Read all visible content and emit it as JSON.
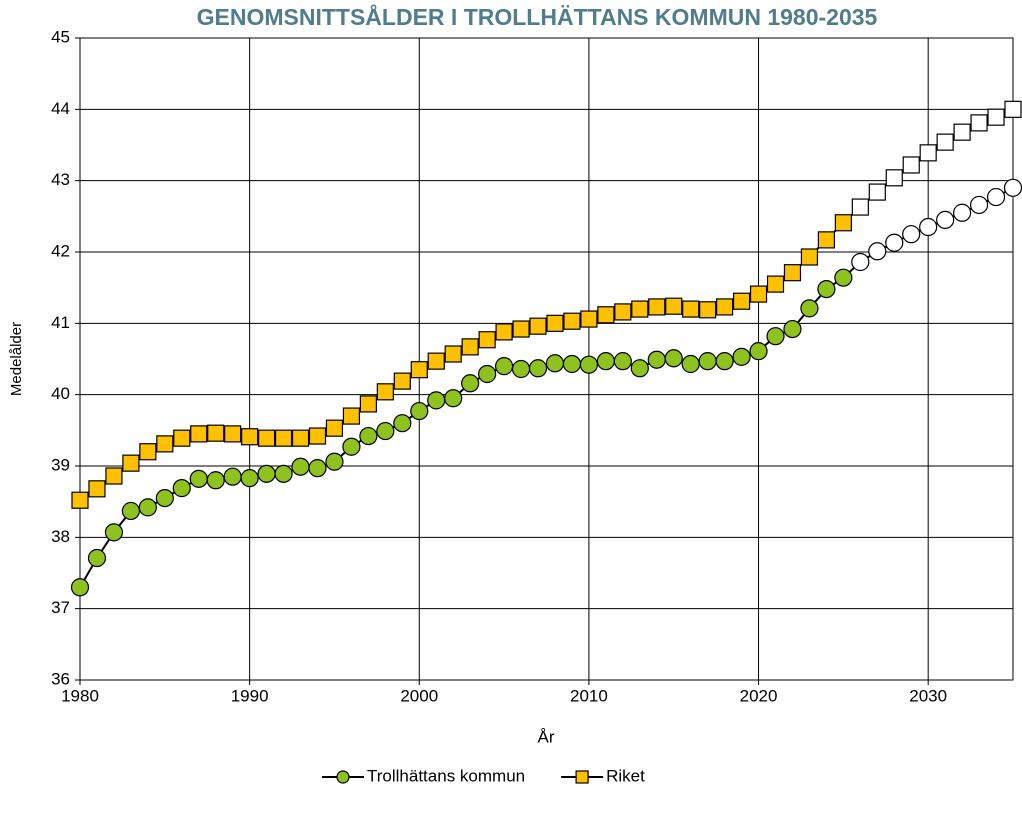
{
  "chart_data": {
    "type": "line",
    "title": "GENOMSNITTSÅLDER I TROLLHÄTTANS KOMMUN 1980-2035",
    "x_label": "År",
    "y_label": "Medelålder",
    "x": [
      1980,
      1981,
      1982,
      1983,
      1984,
      1985,
      1986,
      1987,
      1988,
      1989,
      1990,
      1991,
      1992,
      1993,
      1994,
      1995,
      1996,
      1997,
      1998,
      1999,
      2000,
      2001,
      2002,
      2003,
      2004,
      2005,
      2006,
      2007,
      2008,
      2009,
      2010,
      2011,
      2012,
      2013,
      2014,
      2015,
      2016,
      2017,
      2018,
      2019,
      2020,
      2021,
      2022,
      2023,
      2024,
      2025,
      2026,
      2027,
      2028,
      2029,
      2030,
      2031,
      2032,
      2033,
      2034,
      2035
    ],
    "series": [
      {
        "name": "Trollhättans kommun",
        "color": "#8dc21f",
        "marker": "circle",
        "values": [
          37.3,
          37.71,
          38.07,
          38.37,
          38.42,
          38.55,
          38.69,
          38.82,
          38.8,
          38.85,
          38.83,
          38.89,
          38.89,
          38.99,
          38.97,
          39.06,
          39.27,
          39.42,
          39.49,
          39.6,
          39.77,
          39.92,
          39.95,
          40.16,
          40.29,
          40.4,
          40.36,
          40.37,
          40.44,
          40.43,
          40.42,
          40.47,
          40.47,
          40.37,
          40.49,
          40.51,
          40.43,
          40.47,
          40.47,
          40.53,
          40.61,
          40.82,
          40.92,
          41.21,
          41.48,
          41.64,
          41.86,
          42.01,
          42.13,
          42.25,
          42.35,
          42.45,
          42.55,
          42.66,
          42.77,
          42.9
        ]
      },
      {
        "name": "Riket",
        "color": "#ffc000",
        "marker": "square",
        "values": [
          38.52,
          38.68,
          38.86,
          39.04,
          39.2,
          39.31,
          39.39,
          39.45,
          39.46,
          39.45,
          39.41,
          39.39,
          39.39,
          39.39,
          39.42,
          39.53,
          39.7,
          39.87,
          40.04,
          40.19,
          40.35,
          40.47,
          40.57,
          40.67,
          40.77,
          40.88,
          40.92,
          40.96,
          41.0,
          41.03,
          41.06,
          41.12,
          41.16,
          41.2,
          41.23,
          41.24,
          41.2,
          41.19,
          41.23,
          41.31,
          41.41,
          41.55,
          41.71,
          41.93,
          42.17,
          42.41,
          42.63,
          42.84,
          43.04,
          43.22,
          43.39,
          43.54,
          43.68,
          43.81,
          43.89,
          44.0
        ]
      }
    ],
    "forecast_from": 2026,
    "forecast_color": "#ffffff",
    "xlim": [
      1980,
      2035
    ],
    "xticks": [
      1980,
      1990,
      2000,
      2010,
      2020,
      2030
    ],
    "ylim": [
      36,
      45
    ],
    "yticks": [
      36,
      37,
      38,
      39,
      40,
      41,
      42,
      43,
      44,
      45
    ],
    "grid": true,
    "legend": "bottom",
    "title_color": "#4f7d8c"
  }
}
